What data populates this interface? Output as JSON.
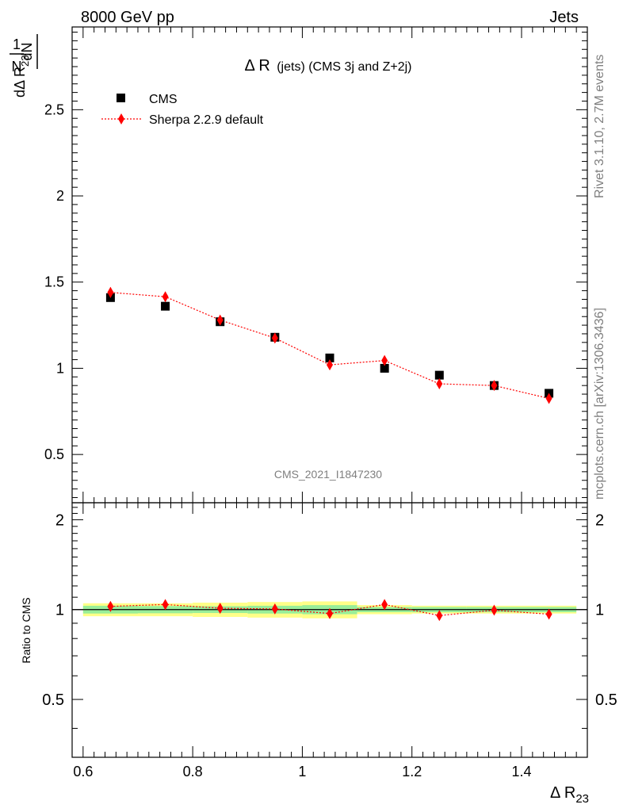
{
  "header": {
    "left": "8000 GeV pp",
    "right": "Jets"
  },
  "side_labels": {
    "rivet": "Rivet 3.1.10,  2.7M events",
    "mcplots": "mcplots.cern.ch [arXiv:1306.3436]"
  },
  "chart_data": {
    "type": "scatter",
    "title": "Δ R (jets) (CMS 3j and Z+2j)",
    "title_main": "Δ R",
    "title_sub": "(jets) (CMS 3j and Z+2j)",
    "analysis_id": "CMS_2021_I1847230",
    "xlabel": "Δ R23",
    "xlabel_main": "Δ R",
    "xlabel_sub": "23",
    "ylabel": "1/N dN/dΔ R23",
    "ylabel_parts": {
      "num1": "1",
      "den1": "N",
      "num2": "dN",
      "den2": "dΔ R",
      "den2_sub": "23"
    },
    "xlim": [
      0.58,
      1.52
    ],
    "ylim": [
      0.22,
      2.98
    ],
    "x_ticks": [
      0.6,
      0.8,
      1.0,
      1.2,
      1.4
    ],
    "x_tick_labels": [
      "0.6",
      "0.8",
      "1",
      "1.2",
      "1.4"
    ],
    "y_ticks": [
      0.5,
      1.0,
      1.5,
      2.0,
      2.5
    ],
    "y_tick_labels": [
      "0.5",
      "1",
      "1.5",
      "2",
      "2.5"
    ],
    "legend_position": "top-left",
    "x": [
      0.65,
      0.75,
      0.85,
      0.95,
      1.05,
      1.15,
      1.25,
      1.35,
      1.45
    ],
    "bin_edges": [
      0.6,
      0.7,
      0.8,
      0.9,
      1.0,
      1.1,
      1.2,
      1.3,
      1.4,
      1.5
    ],
    "series": [
      {
        "name": "CMS",
        "marker": "square",
        "color": "#000000",
        "values": [
          1.41,
          1.36,
          1.27,
          1.18,
          1.06,
          1.0,
          0.96,
          0.9,
          0.855
        ],
        "errors": [
          0.02,
          0.015,
          0.015,
          0.012,
          0.012,
          0.01,
          0.01,
          0.01,
          0.01
        ]
      },
      {
        "name": "Sherpa 2.2.9 default",
        "marker": "diamond",
        "line": "dotted",
        "color": "#ff0000",
        "values": [
          1.44,
          1.415,
          1.28,
          1.175,
          1.02,
          1.045,
          0.91,
          0.9,
          0.825
        ],
        "errors": [
          0.03,
          0.025,
          0.025,
          0.02,
          0.02,
          0.02,
          0.018,
          0.018,
          0.018
        ]
      }
    ],
    "ratio": {
      "ylabel": "Ratio to CMS",
      "ylim": [
        0.32,
        2.28
      ],
      "y_ticks": [
        0.5,
        1.0,
        2.0
      ],
      "y_tick_labels": [
        "0.5",
        "1",
        "2"
      ],
      "values": [
        1.025,
        1.04,
        1.01,
        1.005,
        0.97,
        1.04,
        0.955,
        0.995,
        0.965
      ],
      "band_inner": [
        0.03,
        0.028,
        0.026,
        0.03,
        0.035,
        0.02,
        0.02,
        0.02,
        0.02
      ],
      "band_outer": [
        0.05,
        0.05,
        0.055,
        0.06,
        0.065,
        0.035,
        0.03,
        0.03,
        0.03
      ],
      "band_inner_color": "#99ee99",
      "band_outer_color": "#ffff88"
    }
  }
}
